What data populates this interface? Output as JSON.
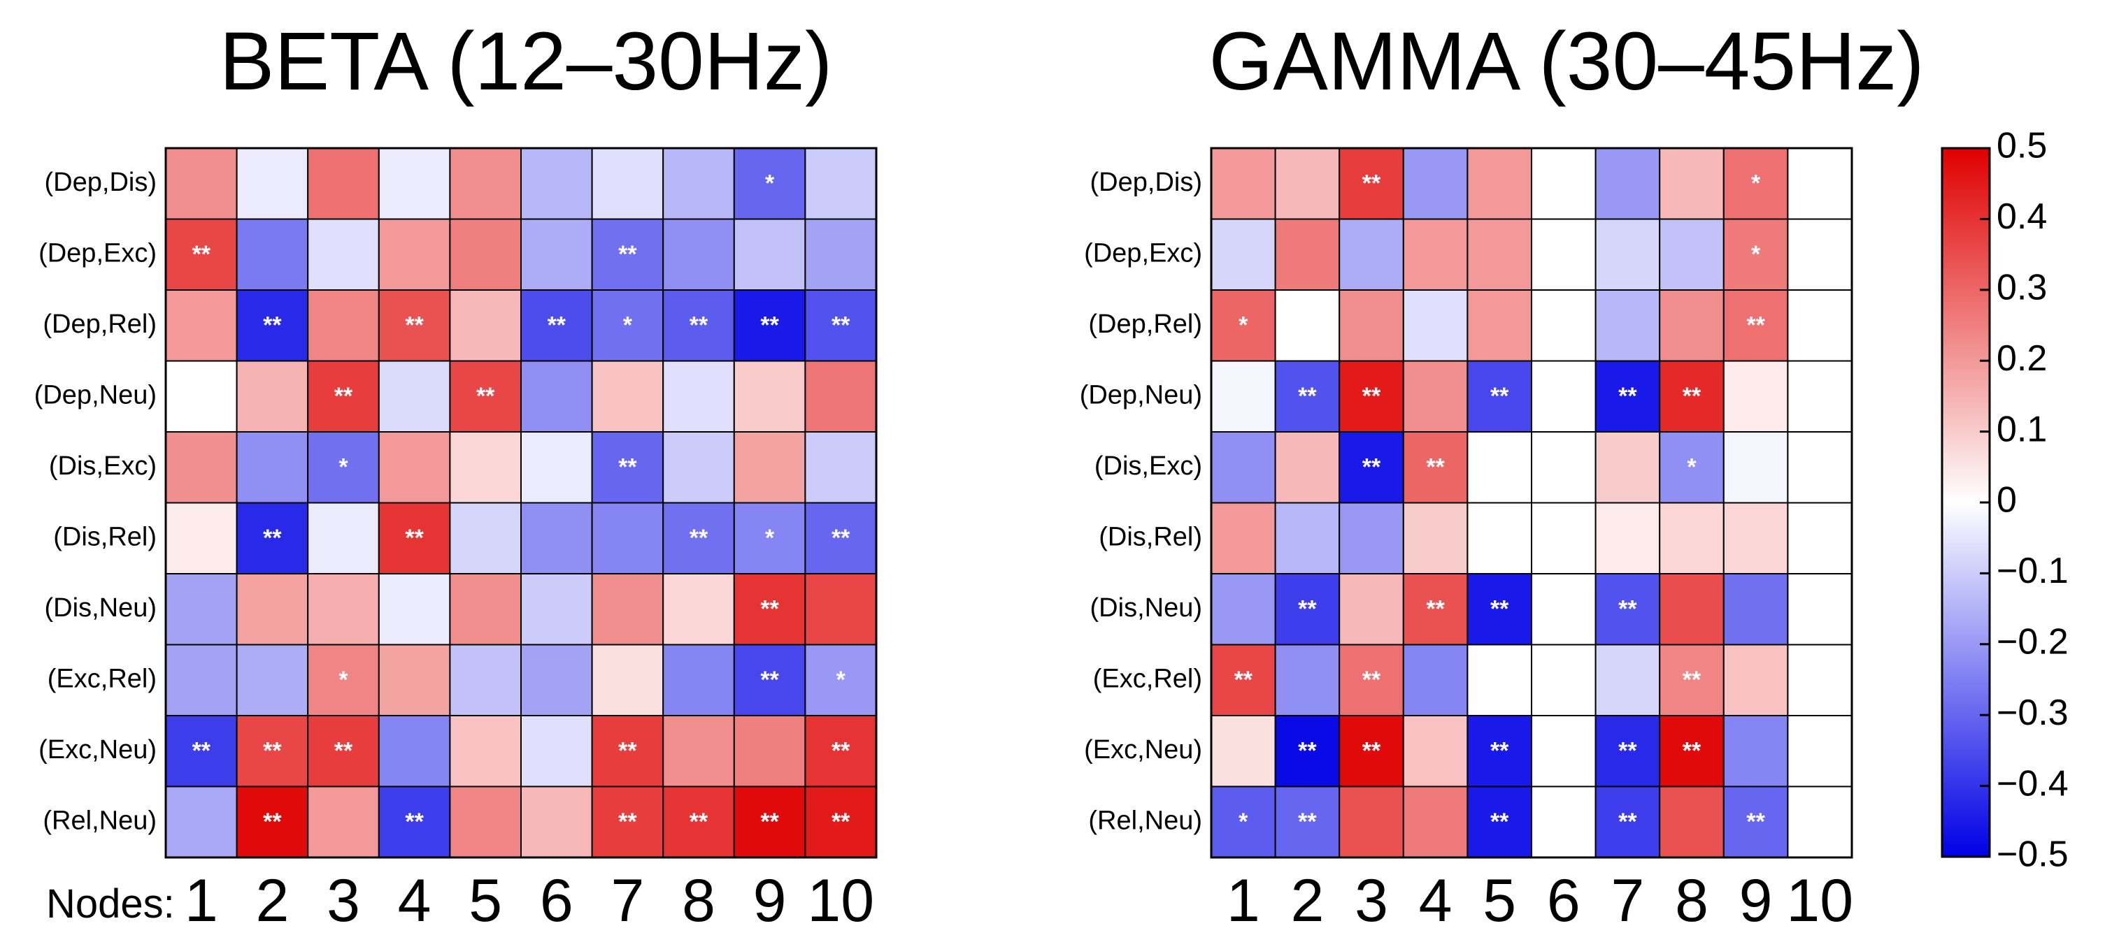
{
  "chart_data": {
    "type": "heatmap",
    "xlabel_prefix": "Nodes:",
    "x_categories": [
      "1",
      "2",
      "3",
      "4",
      "5",
      "6",
      "7",
      "8",
      "9",
      "10"
    ],
    "y_categories": [
      "(Dep,Dis)",
      "(Dep,Exc)",
      "(Dep,Rel)",
      "(Dep,Neu)",
      "(Dis,Exc)",
      "(Dis,Rel)",
      "(Dis,Neu)",
      "(Exc,Rel)",
      "(Exc,Neu)",
      "(Rel,Neu)"
    ],
    "colorbar": {
      "vmin": -0.5,
      "vmax": 0.5,
      "ticks": [
        0.5,
        0.4,
        0.3,
        0.2,
        0.1,
        0,
        -0.1,
        -0.2,
        -0.3,
        -0.4,
        -0.5
      ],
      "tick_labels": [
        "0.5",
        "0.4",
        "0.3",
        "0.2",
        "0.1",
        "0",
        "−0.1",
        "−0.2",
        "−0.3",
        "−0.4",
        "−0.5"
      ],
      "colormap": [
        "#0000e6",
        "#ffffff",
        "#e00000"
      ]
    },
    "panels": [
      {
        "title": "BETA (12–30Hz)",
        "values": [
          [
            0.22,
            -0.04,
            0.28,
            -0.04,
            0.22,
            -0.14,
            -0.06,
            -0.14,
            -0.3,
            -0.1
          ],
          [
            0.36,
            -0.26,
            -0.06,
            0.2,
            0.25,
            -0.16,
            -0.28,
            -0.22,
            -0.12,
            -0.18
          ],
          [
            0.2,
            -0.42,
            0.24,
            0.34,
            0.14,
            -0.35,
            -0.28,
            -0.32,
            -0.45,
            -0.34
          ],
          [
            0.0,
            0.15,
            0.38,
            -0.07,
            0.36,
            -0.22,
            0.12,
            -0.06,
            0.1,
            0.27
          ],
          [
            0.22,
            -0.22,
            -0.28,
            0.2,
            0.08,
            -0.04,
            -0.3,
            -0.1,
            0.18,
            -0.1
          ],
          [
            0.04,
            -0.42,
            -0.04,
            0.4,
            -0.08,
            -0.22,
            -0.24,
            -0.28,
            -0.24,
            -0.3
          ],
          [
            -0.18,
            0.18,
            0.16,
            -0.04,
            0.22,
            -0.1,
            0.22,
            0.08,
            0.4,
            0.36
          ],
          [
            -0.18,
            -0.16,
            0.24,
            0.18,
            -0.12,
            -0.18,
            0.06,
            -0.24,
            -0.36,
            -0.2
          ],
          [
            -0.38,
            0.36,
            0.38,
            -0.24,
            0.12,
            -0.06,
            0.38,
            0.22,
            0.25,
            0.4
          ],
          [
            -0.17,
            0.48,
            0.2,
            -0.38,
            0.24,
            0.14,
            0.38,
            0.4,
            0.48,
            0.45
          ]
        ],
        "significance": [
          [
            "",
            "",
            "",
            "",
            "",
            "",
            "",
            "",
            "*",
            ""
          ],
          [
            "**",
            "",
            "",
            "",
            "",
            "",
            "**",
            "",
            "",
            ""
          ],
          [
            "",
            "**",
            "",
            "**",
            "",
            "**",
            "*",
            "**",
            "**",
            "**"
          ],
          [
            "",
            "",
            "**",
            "",
            "**",
            "",
            "",
            "",
            "",
            ""
          ],
          [
            "",
            "",
            "*",
            "",
            "",
            "",
            "**",
            "",
            "",
            ""
          ],
          [
            "",
            "**",
            "",
            "**",
            "",
            "",
            "",
            "**",
            "*",
            "**"
          ],
          [
            "",
            "",
            "",
            "",
            "",
            "",
            "",
            "",
            "**",
            ""
          ],
          [
            "",
            "",
            "*",
            "",
            "",
            "",
            "",
            "",
            "**",
            "*"
          ],
          [
            "**",
            "**",
            "**",
            "",
            "",
            "",
            "**",
            "",
            "",
            "**"
          ],
          [
            "",
            "**",
            "",
            "**",
            "",
            "",
            "**",
            "**",
            "**",
            "**"
          ]
        ]
      },
      {
        "title": "GAMMA (30–45Hz)",
        "values": [
          [
            0.2,
            0.14,
            0.38,
            -0.2,
            0.2,
            0.0,
            -0.2,
            0.14,
            0.28,
            0.0
          ],
          [
            -0.08,
            0.26,
            -0.16,
            0.2,
            0.2,
            0.0,
            -0.08,
            -0.12,
            0.26,
            0.0
          ],
          [
            0.3,
            0.0,
            0.22,
            -0.06,
            0.2,
            0.0,
            -0.14,
            0.22,
            0.28,
            0.0
          ],
          [
            -0.02,
            -0.34,
            0.45,
            0.22,
            -0.36,
            0.0,
            -0.45,
            0.42,
            0.04,
            0.0
          ],
          [
            -0.22,
            0.14,
            -0.45,
            0.3,
            0.0,
            0.0,
            0.1,
            -0.22,
            -0.02,
            0.0
          ],
          [
            0.2,
            -0.14,
            -0.2,
            0.1,
            0.0,
            0.0,
            0.04,
            0.08,
            0.08,
            0.0
          ],
          [
            -0.2,
            -0.38,
            0.14,
            0.34,
            -0.45,
            0.0,
            -0.34,
            0.35,
            -0.28,
            0.0
          ],
          [
            0.36,
            -0.22,
            0.28,
            -0.24,
            0.0,
            0.0,
            -0.08,
            0.24,
            0.12,
            0.0
          ],
          [
            0.06,
            -0.48,
            0.48,
            0.12,
            -0.45,
            0.0,
            -0.42,
            0.48,
            -0.24,
            0.0
          ],
          [
            -0.32,
            -0.3,
            0.34,
            0.26,
            -0.45,
            0.0,
            -0.38,
            0.34,
            -0.3,
            0.0
          ]
        ],
        "significance": [
          [
            "",
            "",
            "**",
            "",
            "",
            "",
            "",
            "",
            "*",
            ""
          ],
          [
            "",
            "",
            "",
            "",
            "",
            "",
            "",
            "",
            "*",
            ""
          ],
          [
            "*",
            "",
            "",
            "",
            "",
            "",
            "",
            "",
            "**",
            ""
          ],
          [
            "",
            "**",
            "**",
            "",
            "**",
            "",
            "**",
            "**",
            "",
            ""
          ],
          [
            "",
            "",
            "**",
            "**",
            "",
            "",
            "",
            "*",
            "",
            ""
          ],
          [
            "",
            "",
            "",
            "",
            "",
            "",
            "",
            "",
            "",
            ""
          ],
          [
            "",
            "**",
            "",
            "**",
            "**",
            "",
            "**",
            "",
            "",
            ""
          ],
          [
            "**",
            "",
            "**",
            "",
            "",
            "",
            "",
            "**",
            "",
            ""
          ],
          [
            "",
            "**",
            "**",
            "",
            "**",
            "",
            "**",
            "**",
            "",
            ""
          ],
          [
            "*",
            "**",
            "",
            "",
            "**",
            "",
            "**",
            "",
            "**",
            ""
          ]
        ]
      }
    ]
  }
}
